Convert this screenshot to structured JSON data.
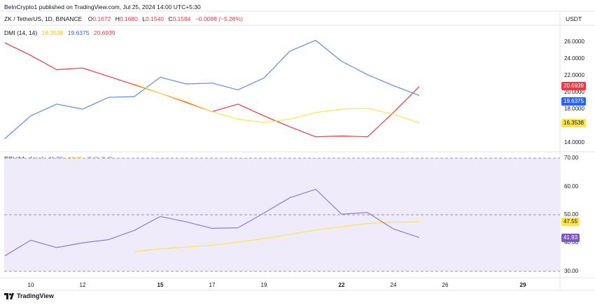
{
  "header": {
    "publisher": "BeInCrypto1 published on TradingView.com, Jul 25, 2024 14:00 UTC+5:30",
    "symbol": "ZK / TetherUS, 1D, BINANCE",
    "o_label": "O",
    "o_value": "0.1672",
    "h_label": "H",
    "h_value": "0.1680",
    "l_label": "L",
    "l_value": "0.1540",
    "c_label": "C",
    "c_value": "0.1584",
    "change": "−0.0088 (−5.26%)",
    "currency": "USDT"
  },
  "dmi_legend": {
    "name": "DMI (14, 14)",
    "v1": "16.3538",
    "v2": "19.6375",
    "v3": "20.6939"
  },
  "rsi_legend": {
    "name": "RSI (14, close)",
    "v1": "41.93",
    "v2": "47.55",
    "extras": "∅ ∅ ∅ ∅"
  },
  "branding": {
    "logo_text": "TradingView"
  },
  "colors": {
    "plus_di": "#5b8def",
    "minus_di": "#f23645",
    "adx": "#fbe54a",
    "rsi": "#8e7cc3",
    "rsi_ma": "#fbe54a",
    "rsi_band": "#efebfa"
  },
  "chart_data": [
    {
      "type": "line",
      "title": "DMI (14, 14)",
      "x": [
        "Jul 9",
        "Jul 10",
        "Jul 11",
        "Jul 12",
        "Jul 13",
        "Jul 14",
        "Jul 15",
        "Jul 16",
        "Jul 17",
        "Jul 18",
        "Jul 19",
        "Jul 20",
        "Jul 21",
        "Jul 22",
        "Jul 23",
        "Jul 24",
        "Jul 25"
      ],
      "x_ticks": [
        "10",
        "12",
        "15",
        "17",
        "19",
        "22",
        "24",
        "26",
        "29"
      ],
      "ylim": [
        13.0,
        28.0
      ],
      "y_ticks": [
        14,
        16,
        18,
        20,
        22,
        24,
        26
      ],
      "y_tick_labels": [
        "14.0000",
        "16.0000",
        "18.0000",
        "20.0000",
        "22.0000",
        "24.0000",
        "26.0000"
      ],
      "series": [
        {
          "values": [
            25.9,
            24.4,
            22.7,
            22.9,
            21.9,
            20.9,
            19.9,
            18.8,
            17.7,
            18.6,
            17.2,
            15.9,
            14.7,
            14.8,
            14.7,
            17.6,
            20.6939
          ]
        },
        {
          "values": [
            14.5,
            17.2,
            18.6,
            18.0,
            19.4,
            19.5,
            21.8,
            21.0,
            21.1,
            20.3,
            21.7,
            24.9,
            26.2,
            23.7,
            22.1,
            20.8,
            19.6375
          ]
        },
        {
          "values": [
            null,
            null,
            null,
            null,
            null,
            21.0,
            19.9,
            18.9,
            17.7,
            16.8,
            16.4,
            16.8,
            17.6,
            18.0,
            18.1,
            17.4,
            16.3538
          ]
        }
      ],
      "last_value_labels": [
        "20.6939",
        "19.6375",
        "16.3538"
      ],
      "grid": false
    },
    {
      "type": "line",
      "title": "RSI (14, close)",
      "x": [
        "Jul 9",
        "Jul 10",
        "Jul 11",
        "Jul 12",
        "Jul 13",
        "Jul 14",
        "Jul 15",
        "Jul 16",
        "Jul 17",
        "Jul 18",
        "Jul 19",
        "Jul 20",
        "Jul 21",
        "Jul 22",
        "Jul 23",
        "Jul 24",
        "Jul 25"
      ],
      "ylim": [
        28.0,
        72.0
      ],
      "y_ticks": [
        30,
        40,
        50,
        60,
        70
      ],
      "y_tick_labels": [
        "30.00",
        "40.00",
        "50.00",
        "60.00",
        "70.00"
      ],
      "levels": [
        70,
        50,
        30
      ],
      "series": [
        {
          "values": [
            35.5,
            41.0,
            38.4,
            40.1,
            41.2,
            44.5,
            49.4,
            47.5,
            45.2,
            45.4,
            50.6,
            56.0,
            59.0,
            50.2,
            50.8,
            45.0,
            41.93
          ]
        },
        {
          "values": [
            null,
            null,
            null,
            null,
            null,
            37.0,
            37.9,
            38.6,
            39.2,
            40.3,
            41.6,
            43.0,
            44.6,
            45.8,
            46.9,
            47.4,
            47.55
          ]
        }
      ],
      "last_value_labels": [
        "47.55",
        "41.93"
      ]
    }
  ]
}
